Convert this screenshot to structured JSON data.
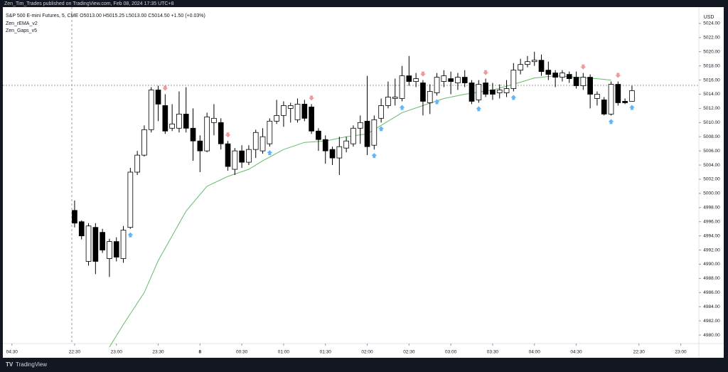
{
  "header": {
    "author_line": "Zen_Tim_Trades published on TradingView.com, Feb 08, 2024 17:35 UTC+8",
    "footer_brand": "TradingView"
  },
  "chart_data": {
    "type": "candlestick",
    "symbol_line": "S&P 500 E-mini Futures, 5, CME  O5013.00 H5015.25 L5013.00 C5014.50 +1.50 (+0.03%)",
    "indicators": [
      "Zen_rEMA_v2",
      "Zen_Gaps_v5"
    ],
    "currency": "USD",
    "open": [
      4997.6,
      4996,
      4990.4,
      4995.2,
      4994.5,
      4990.8,
      4993.2,
      4990.8,
      4995.2,
      5003,
      5005.4,
      5009,
      5014.6,
      5012.4,
      5009.2,
      5009.2,
      5011.2,
      5009.2,
      5007.4,
      5006,
      5010,
      5010,
      5007,
      5003.4,
      5006,
      5004.4,
      5006.2,
      5006,
      5007,
      5010.2,
      5011,
      5012,
      5010.4,
      5012.6,
      5012.2,
      5008.8,
      5007.6,
      5006.2,
      5005,
      5006.4,
      5007,
      5009.2,
      5010.2,
      5006.8,
      5010.6,
      5012.4,
      5013.4,
      5013.4,
      5016.6,
      5015.8,
      5015.6,
      5012.8,
      5014.2,
      5015.8,
      5016.2,
      5015.6,
      5016.4,
      5015.6,
      5013.2,
      5015.6,
      5014.6,
      5014.2,
      5014.2,
      5014.8,
      5017.4,
      5018.2,
      5018.6,
      5018.8,
      5017.4,
      5017,
      5016.4,
      5016.8,
      5016.4,
      5015.2,
      5016.4,
      5013.4,
      5013.2,
      5011.2,
      5015.4,
      5013,
      5013
    ],
    "high": [
      4999,
      4996.2,
      4995.8,
      4995.8,
      4995,
      4993.6,
      4993.8,
      4995.4,
      5003.6,
      5006,
      5009.6,
      5015,
      5015.2,
      5014,
      5012.6,
      5014.4,
      5015,
      5012,
      5008.2,
      5011.4,
      5012.6,
      5010.6,
      5007.4,
      5006.4,
      5006.8,
      5006.8,
      5009,
      5009.2,
      5010.6,
      5013.2,
      5013,
      5012.8,
      5013.4,
      5013.2,
      5012.6,
      5009.2,
      5008.2,
      5006.6,
      5008,
      5008,
      5009.6,
      5011,
      5016.6,
      5011,
      5013.4,
      5015.8,
      5016.2,
      5018,
      5019.4,
      5017,
      5016,
      5015.4,
      5017,
      5017.4,
      5017.2,
      5017,
      5017.4,
      5016,
      5016,
      5016.2,
      5015.6,
      5015.4,
      5016,
      5018.4,
      5019,
      5019.4,
      5020,
      5019.6,
      5018.6,
      5017.4,
      5017.4,
      5017.2,
      5017.2,
      5017,
      5016.8,
      5014.4,
      5013.6,
      5015.8,
      5015.8,
      5013.4,
      5015.2
    ],
    "low": [
      4995.2,
      4993.5,
      4989.8,
      4988.6,
      4991.6,
      4988.2,
      4990.4,
      4990.2,
      4995,
      5002.6,
      5005.2,
      5008.6,
      5010.2,
      5008.4,
      5008.8,
      5008.6,
      5008.6,
      5004.6,
      5003,
      5005.8,
      5008.2,
      5006.2,
      5003.2,
      5002.6,
      5003.6,
      5004,
      5005,
      5005.6,
      5006.6,
      5009.8,
      5009.4,
      5010,
      5010,
      5010.2,
      5008.4,
      5006,
      5004.2,
      5004,
      5002.6,
      5005.8,
      5006.6,
      5007,
      5005.4,
      5006.2,
      5010,
      5012,
      5012.4,
      5013,
      5015.2,
      5015,
      5011,
      5011.2,
      5013.8,
      5015,
      5014,
      5014.6,
      5015,
      5012.6,
      5012.8,
      5013.6,
      5013.2,
      5013.4,
      5013.6,
      5014.4,
      5016.8,
      5017.8,
      5018,
      5016.6,
      5016,
      5015,
      5015.8,
      5015.6,
      5014.8,
      5014.6,
      5012,
      5012.4,
      5011,
      5011,
      5012.4,
      5012.6,
      5013
    ],
    "close": [
      4995.8,
      4994,
      4995.4,
      4990.4,
      4992,
      4993.2,
      4991,
      4994.8,
      5003,
      5005.4,
      5009,
      5014.6,
      5012.6,
      5008.8,
      5009.8,
      5011.2,
      5009.2,
      5007.4,
      5006,
      5010.8,
      5010.6,
      5007,
      5003.8,
      5006,
      5004.4,
      5006.2,
      5008.6,
      5008,
      5010.2,
      5011,
      5012.4,
      5012.4,
      5012.6,
      5010.6,
      5008.8,
      5007.6,
      5006,
      5005,
      5006.6,
      5007.4,
      5009.2,
      5010,
      5006.6,
      5010.4,
      5012.4,
      5013.6,
      5013.6,
      5016.6,
      5015.8,
      5016.2,
      5013,
      5014.4,
      5016.4,
      5016.6,
      5015.8,
      5016.4,
      5015.6,
      5013,
      5015.4,
      5014,
      5014,
      5014.6,
      5014.8,
      5017.4,
      5018.2,
      5018.6,
      5018.8,
      5017.2,
      5016.8,
      5016.4,
      5017,
      5016.2,
      5015.2,
      5016.4,
      5014,
      5014,
      5011.2,
      5015.4,
      5012.8,
      5012.8,
      5014.5
    ],
    "up_color": "#ffffff",
    "down_color": "#000000",
    "wick_color": "#000000",
    "ema": {
      "color": "#66bb6a",
      "x": [
        5,
        7,
        10,
        12,
        14,
        16,
        19,
        22,
        25,
        27,
        30,
        33,
        36,
        39,
        42,
        44,
        47,
        50,
        53,
        56,
        60,
        63,
        66,
        69,
        72,
        75,
        77
      ],
      "values": [
        4978.3,
        4981.5,
        4986,
        4990.5,
        4994,
        4997.5,
        5001,
        5002.4,
        5003.4,
        5004.6,
        5006.2,
        5007.2,
        5007.4,
        5008,
        5008.4,
        5009.6,
        5011.4,
        5012.4,
        5013.4,
        5014,
        5014.6,
        5015.4,
        5016.3,
        5016.6,
        5016.4,
        5016.2,
        5016
      ]
    },
    "sell_signals": {
      "color": "#ef9a9a",
      "x": [
        13,
        22,
        34,
        50,
        59,
        73,
        78
      ]
    },
    "buy_signals": {
      "color": "#64b5f6",
      "x": [
        8,
        28,
        43,
        44,
        47,
        52,
        58,
        63,
        77,
        80
      ]
    },
    "xlim": [
      -10.3,
      89.6
    ],
    "xticks": [
      {
        "value": -9,
        "label": "04:30"
      },
      {
        "value": 0,
        "label": "22:30"
      },
      {
        "value": 6,
        "label": "23:00"
      },
      {
        "value": 12,
        "label": "23:30"
      },
      {
        "value": 18,
        "label": "8"
      },
      {
        "value": 24,
        "label": "00:30"
      },
      {
        "value": 30,
        "label": "01:00"
      },
      {
        "value": 36,
        "label": "01:30"
      },
      {
        "value": 42,
        "label": "02:00"
      },
      {
        "value": 48,
        "label": "02:30"
      },
      {
        "value": 54,
        "label": "03:00"
      },
      {
        "value": 60,
        "label": "03:30"
      },
      {
        "value": 66,
        "label": "04:00"
      },
      {
        "value": 72,
        "label": "04:30"
      },
      {
        "value": 81,
        "label": "22:30"
      },
      {
        "value": 87,
        "label": "23:00"
      }
    ],
    "ylim": [
      4978.8,
      5026.3
    ],
    "yticks": [
      {
        "value": 4980,
        "label": "4980.00"
      },
      {
        "value": 4982,
        "label": "4982.00"
      },
      {
        "value": 4984,
        "label": "4984.00"
      },
      {
        "value": 4986,
        "label": "4986.00"
      },
      {
        "value": 4988,
        "label": "4988.00"
      },
      {
        "value": 4990,
        "label": "4990.00"
      },
      {
        "value": 4992,
        "label": "4992.00"
      },
      {
        "value": 4994,
        "label": "4994.00"
      },
      {
        "value": 4996,
        "label": "4996.00"
      },
      {
        "value": 4998,
        "label": "4998.00"
      },
      {
        "value": 5000,
        "label": "5000.00"
      },
      {
        "value": 5002,
        "label": "5002.00"
      },
      {
        "value": 5004,
        "label": "5004.00"
      },
      {
        "value": 5006,
        "label": "5006.00"
      },
      {
        "value": 5008,
        "label": "5008.00"
      },
      {
        "value": 5010,
        "label": "5010.00"
      },
      {
        "value": 5012,
        "label": "5012.00"
      },
      {
        "value": 5014,
        "label": "5014.00"
      },
      {
        "value": 5016,
        "label": "5016.00"
      },
      {
        "value": 5018,
        "label": "5018.00"
      },
      {
        "value": 5020,
        "label": "5020.00"
      },
      {
        "value": 5022,
        "label": "5022.00"
      },
      {
        "value": 5024,
        "label": "5024.00"
      }
    ]
  }
}
